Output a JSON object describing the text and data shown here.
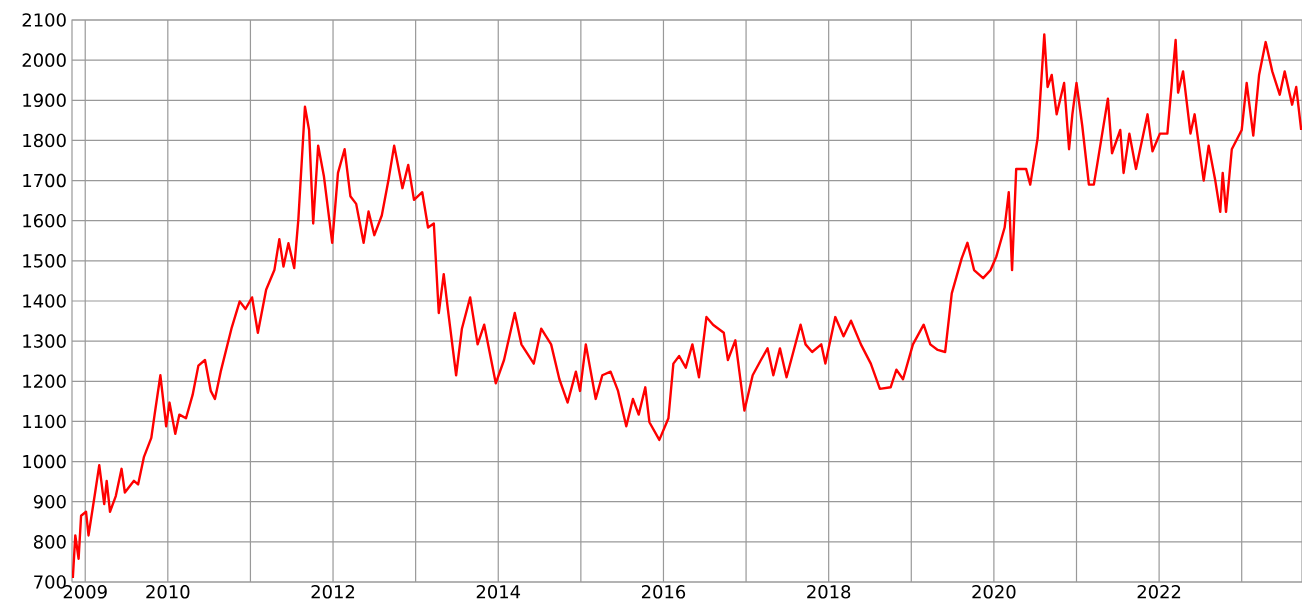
{
  "chart_data": {
    "type": "line",
    "xlim": [
      2008.84,
      2023.73
    ],
    "ylim": [
      700,
      2100
    ],
    "xticks": [
      2009,
      2010,
      {
        "value": 2011,
        "label": null
      },
      2012,
      {
        "value": 2013,
        "label": null
      },
      2014,
      {
        "value": 2015,
        "label": null
      },
      2016,
      {
        "value": 2017,
        "label": null
      },
      2018,
      {
        "value": 2019,
        "label": null
      },
      2020,
      {
        "value": 2021,
        "label": null
      },
      2022,
      {
        "value": 2023,
        "label": null
      }
    ],
    "yticks": [
      700,
      800,
      900,
      1000,
      1100,
      1200,
      1300,
      1400,
      1500,
      1600,
      1700,
      1800,
      1900,
      2000,
      2100
    ],
    "grid": true,
    "marker": "none",
    "line_style": "solid",
    "series": [
      {
        "color": "#ff0000",
        "x": [
          2008.85,
          2008.88,
          2008.92,
          2008.95,
          2009.01,
          2009.04,
          2009.12,
          2009.17,
          2009.23,
          2009.26,
          2009.3,
          2009.37,
          2009.44,
          2009.48,
          2009.59,
          2009.64,
          2009.71,
          2009.8,
          2009.84,
          2009.91,
          2009.98,
          2010.02,
          2010.09,
          2010.14,
          2010.22,
          2010.3,
          2010.37,
          2010.45,
          2010.52,
          2010.57,
          2010.64,
          2010.77,
          2010.87,
          2010.94,
          2011.02,
          2011.09,
          2011.19,
          2011.29,
          2011.35,
          2011.4,
          2011.46,
          2011.53,
          2011.58,
          2011.66,
          2011.71,
          2011.76,
          2011.82,
          2011.89,
          2011.99,
          2012.06,
          2012.14,
          2012.21,
          2012.28,
          2012.37,
          2012.43,
          2012.5,
          2012.59,
          2012.67,
          2012.74,
          2012.84,
          2012.91,
          2012.98,
          2013.08,
          2013.15,
          2013.22,
          2013.28,
          2013.34,
          2013.39,
          2013.49,
          2013.56,
          2013.66,
          2013.75,
          2013.83,
          2013.97,
          2014.07,
          2014.2,
          2014.28,
          2014.43,
          2014.52,
          2014.64,
          2014.74,
          2014.84,
          2014.94,
          2014.99,
          2015.06,
          2015.18,
          2015.26,
          2015.36,
          2015.45,
          2015.55,
          2015.63,
          2015.7,
          2015.78,
          2015.83,
          2015.95,
          2016.06,
          2016.12,
          2016.19,
          2016.27,
          2016.35,
          2016.43,
          2016.52,
          2016.6,
          2016.73,
          2016.78,
          2016.87,
          2016.98,
          2017.08,
          2017.18,
          2017.26,
          2017.33,
          2017.41,
          2017.49,
          2017.66,
          2017.72,
          2017.8,
          2017.91,
          2017.96,
          2018.08,
          2018.18,
          2018.27,
          2018.39,
          2018.51,
          2018.62,
          2018.75,
          2018.82,
          2018.9,
          2019.02,
          2019.15,
          2019.23,
          2019.32,
          2019.41,
          2019.49,
          2019.61,
          2019.68,
          2019.76,
          2019.87,
          2019.96,
          2020.03,
          2020.13,
          2020.18,
          2020.22,
          2020.27,
          2020.39,
          2020.44,
          2020.53,
          2020.61,
          2020.65,
          2020.7,
          2020.76,
          2020.85,
          2020.91,
          2020.95,
          2021.0,
          2021.07,
          2021.15,
          2021.21,
          2021.25,
          2021.38,
          2021.43,
          2021.53,
          2021.57,
          2021.64,
          2021.72,
          2021.86,
          2021.92,
          2022.01,
          2022.1,
          2022.2,
          2022.23,
          2022.29,
          2022.38,
          2022.43,
          2022.54,
          2022.6,
          2022.68,
          2022.74,
          2022.77,
          2022.81,
          2022.88,
          2023.0,
          2023.06,
          2023.14,
          2023.21,
          2023.29,
          2023.37,
          2023.46,
          2023.52,
          2023.61,
          2023.66,
          2023.72
        ],
        "values": [
          710,
          816,
          758,
          865,
          875,
          816,
          923,
          991,
          894,
          952,
          875,
          914,
          982,
          923,
          952,
          943,
          1011,
          1059,
          1117,
          1215,
          1088,
          1147,
          1069,
          1117,
          1108,
          1166,
          1239,
          1253,
          1176,
          1156,
          1224,
          1331,
          1399,
          1380,
          1409,
          1321,
          1428,
          1477,
          1554,
          1486,
          1544,
          1482,
          1603,
          1884,
          1826,
          1593,
          1787,
          1710,
          1545,
          1719,
          1778,
          1661,
          1642,
          1545,
          1623,
          1564,
          1613,
          1700,
          1787,
          1681,
          1739,
          1652,
          1671,
          1583,
          1593,
          1370,
          1467,
          1380,
          1215,
          1331,
          1409,
          1292,
          1341,
          1195,
          1253,
          1370,
          1292,
          1244,
          1331,
          1292,
          1205,
          1147,
          1224,
          1176,
          1292,
          1156,
          1215,
          1224,
          1176,
          1088,
          1156,
          1117,
          1185,
          1098,
          1054,
          1108,
          1244,
          1263,
          1234,
          1292,
          1210,
          1360,
          1341,
          1321,
          1253,
          1302,
          1127,
          1215,
          1253,
          1282,
          1215,
          1282,
          1210,
          1341,
          1292,
          1273,
          1292,
          1244,
          1360,
          1312,
          1351,
          1292,
          1244,
          1181,
          1185,
          1229,
          1205,
          1292,
          1341,
          1292,
          1278,
          1273,
          1419,
          1506,
          1545,
          1477,
          1457,
          1477,
          1511,
          1583,
          1671,
          1477,
          1729,
          1729,
          1690,
          1806,
          2064,
          1933,
          1963,
          1865,
          1943,
          1778,
          1865,
          1943,
          1836,
          1690,
          1690,
          1739,
          1904,
          1768,
          1826,
          1719,
          1817,
          1729,
          1865,
          1773,
          1817,
          1817,
          2050,
          1919,
          1972,
          1817,
          1865,
          1700,
          1787,
          1700,
          1622,
          1719,
          1622,
          1778,
          1826,
          1943,
          1812,
          1963,
          2045,
          1972,
          1914,
          1972,
          1889,
          1933,
          1826
        ]
      }
    ]
  }
}
